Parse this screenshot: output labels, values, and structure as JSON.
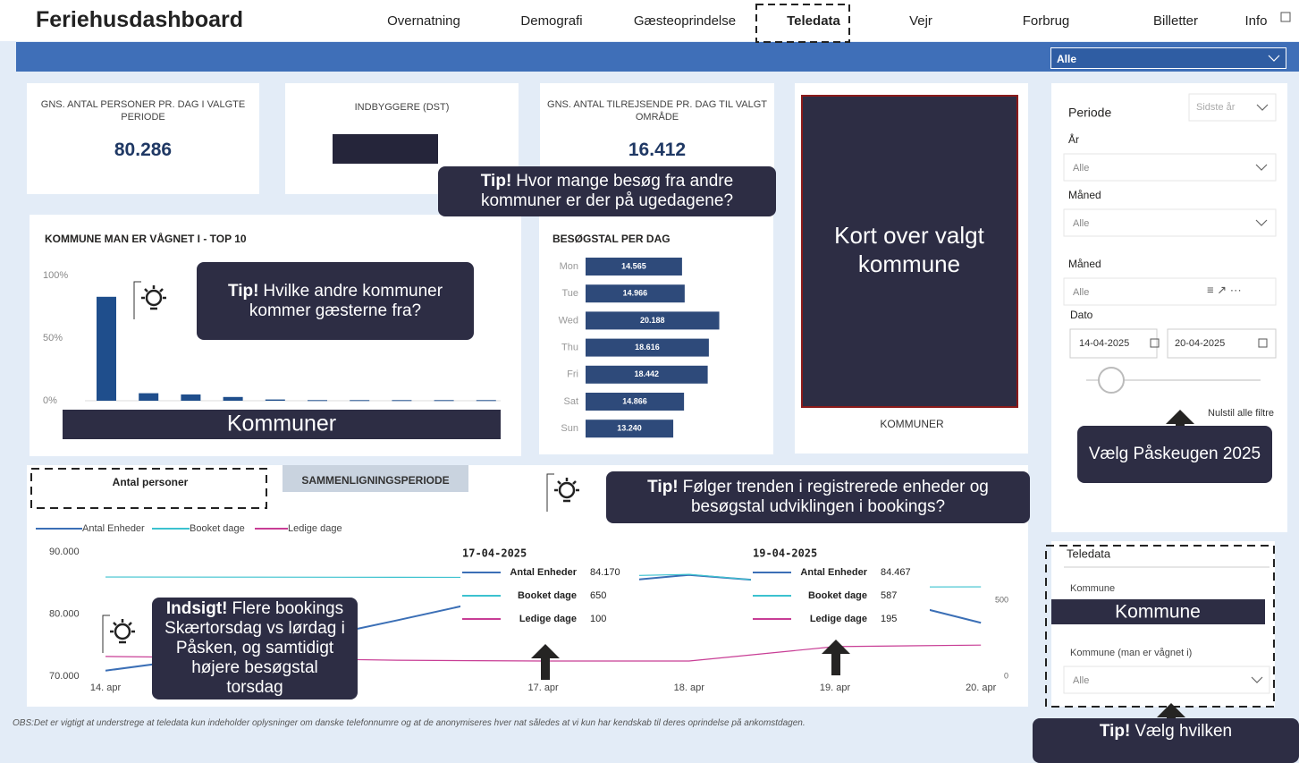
{
  "header": {
    "title": "Feriehusdashboard",
    "nav": [
      "Overnatning",
      "Demografi",
      "Gæsteoprindelse",
      "Teledata",
      "Vejr",
      "Forbrug",
      "Billetter",
      "Info"
    ],
    "active": "Teledata",
    "filter": "Alle"
  },
  "kpis": [
    {
      "label": "GNS. ANTAL PERSONER PR. DAG I VALGTE PERIODE",
      "value": "80.286"
    },
    {
      "label": "INDBYGGERE (DST)"
    },
    {
      "label": "GNS. ANTAL TILREJSENDE PR. DAG TIL VALGT OMRÅDE",
      "value": "16.412"
    }
  ],
  "callouts": [
    {
      "bold": "Tip!",
      "text": "Hvor mange besøg fra andre kommuner er der på ugedagene?"
    },
    {
      "bold": "Tip!",
      "text": "Hvilke andre kommuner kommer gæsterne fra?"
    },
    {
      "text": "Vælg Påskeugen 2025"
    },
    {
      "bold": "Tip!",
      "text": "Følger trenden i registrerede enheder og besøgstal udviklingen i bookings?"
    },
    {
      "bold": "Indsigt!",
      "text": "Flere bookings Skærtorsdag vs lørdag i Påsken, og samtidigt højere besøgstal torsdag"
    },
    {
      "bold": "Tip!",
      "text": "Vælg hvilken"
    }
  ],
  "redactions": [
    "Kommuner",
    "Kommune"
  ],
  "map": {
    "overlay": "Kort over valgt kommune",
    "caption": "KOMMUNER"
  },
  "filters": {
    "periode": {
      "label": "Periode",
      "value": "Sidste år"
    },
    "fields": [
      {
        "label": "År",
        "value": "Alle"
      },
      {
        "label": "Måned",
        "value": "Alle"
      },
      {
        "label": "Måned",
        "value": "Alle"
      }
    ],
    "date": {
      "label": "Dato",
      "from": "14-04-2025",
      "to": "20-04-2025"
    },
    "reset": "Nulstil alle filtre"
  },
  "teledata": {
    "title": "Teledata",
    "fields": [
      {
        "label": "Kommune"
      },
      {
        "label": "Kommune (man er vågnet i)",
        "value": "Alle"
      }
    ]
  },
  "tabs": [
    "Antal personer",
    "SAMMENLIGNINGSPERIODE"
  ],
  "chart_data": [
    {
      "type": "bar",
      "title": "KOMMUNE MAN ER VÅGNET I - TOP 10",
      "categories": [
        null,
        null,
        null,
        null,
        null,
        null,
        null,
        null,
        null,
        null
      ],
      "values": [
        83,
        6,
        5,
        3,
        1,
        0.5,
        0.5,
        0.5,
        0.5,
        0.5
      ],
      "color": "#1f4e8c",
      "ylim": [
        0,
        100
      ],
      "yticks": [
        {
          "value": 0,
          "label": "0%"
        },
        {
          "value": 50,
          "label": "50%"
        },
        {
          "value": 100,
          "label": "100%"
        }
      ]
    },
    {
      "type": "barh",
      "title": "BESØGSTAL PER DAG",
      "categories": [
        "Mon",
        "Tue",
        "Wed",
        "Thu",
        "Fri",
        "Sat",
        "Sun"
      ],
      "values": [
        14565,
        14966,
        20188,
        18616,
        18442,
        14866,
        13240
      ],
      "value_labels": [
        "14.565",
        "14.966",
        "20.188",
        "18.616",
        "18.442",
        "14.866",
        "13.240"
      ],
      "color": "#2e4a7a",
      "xlim": [
        0,
        27000
      ]
    },
    {
      "type": "line",
      "categories": [
        "14. apr",
        null,
        null,
        "17. apr",
        "18. apr",
        "19. apr",
        "20. apr"
      ],
      "series": [
        {
          "name": "Antal Enheder",
          "color": "#3b6fb6",
          "values": [
            70900,
            74000,
            79000,
            84170,
            86300,
            84467,
            78600
          ]
        },
        {
          "name": "Booket dage",
          "color": "#3cc2cf",
          "axis": "y2",
          "values": [
            653,
            652,
            651,
            650,
            670,
            587,
            588
          ]
        },
        {
          "name": "Ledige dage",
          "color": "#c83d95",
          "axis": "y2",
          "values": [
            130,
            120,
            105,
            100,
            100,
            195,
            205
          ]
        }
      ],
      "ylim": [
        70000,
        90000
      ],
      "yticks": [
        {
          "value": 70000,
          "label": "70.000"
        },
        {
          "value": 80000,
          "label": "80.000"
        },
        {
          "value": 90000,
          "label": "90.000"
        }
      ],
      "y2lim": [
        0,
        818
      ],
      "y2ticks": [
        0,
        500
      ],
      "tooltips": [
        {
          "date": "17-04-2025",
          "rows": [
            {
              "name": "Antal Enheder",
              "value": "84.170"
            },
            {
              "name": "Booket dage",
              "value": "650"
            },
            {
              "name": "Ledige dage",
              "value": "100"
            }
          ]
        },
        {
          "date": "19-04-2025",
          "rows": [
            {
              "name": "Antal Enheder",
              "value": "84.467"
            },
            {
              "name": "Booket dage",
              "value": "587"
            },
            {
              "name": "Ledige dage",
              "value": "195"
            }
          ]
        }
      ]
    }
  ],
  "footer": "OBS:Det er vigtigt at understrege at teledata kun indeholder oplysninger om danske telefonnumre og at de anonymiseres hver nat således at vi kun har kendskab til deres oprindelse på ankomstdagen."
}
